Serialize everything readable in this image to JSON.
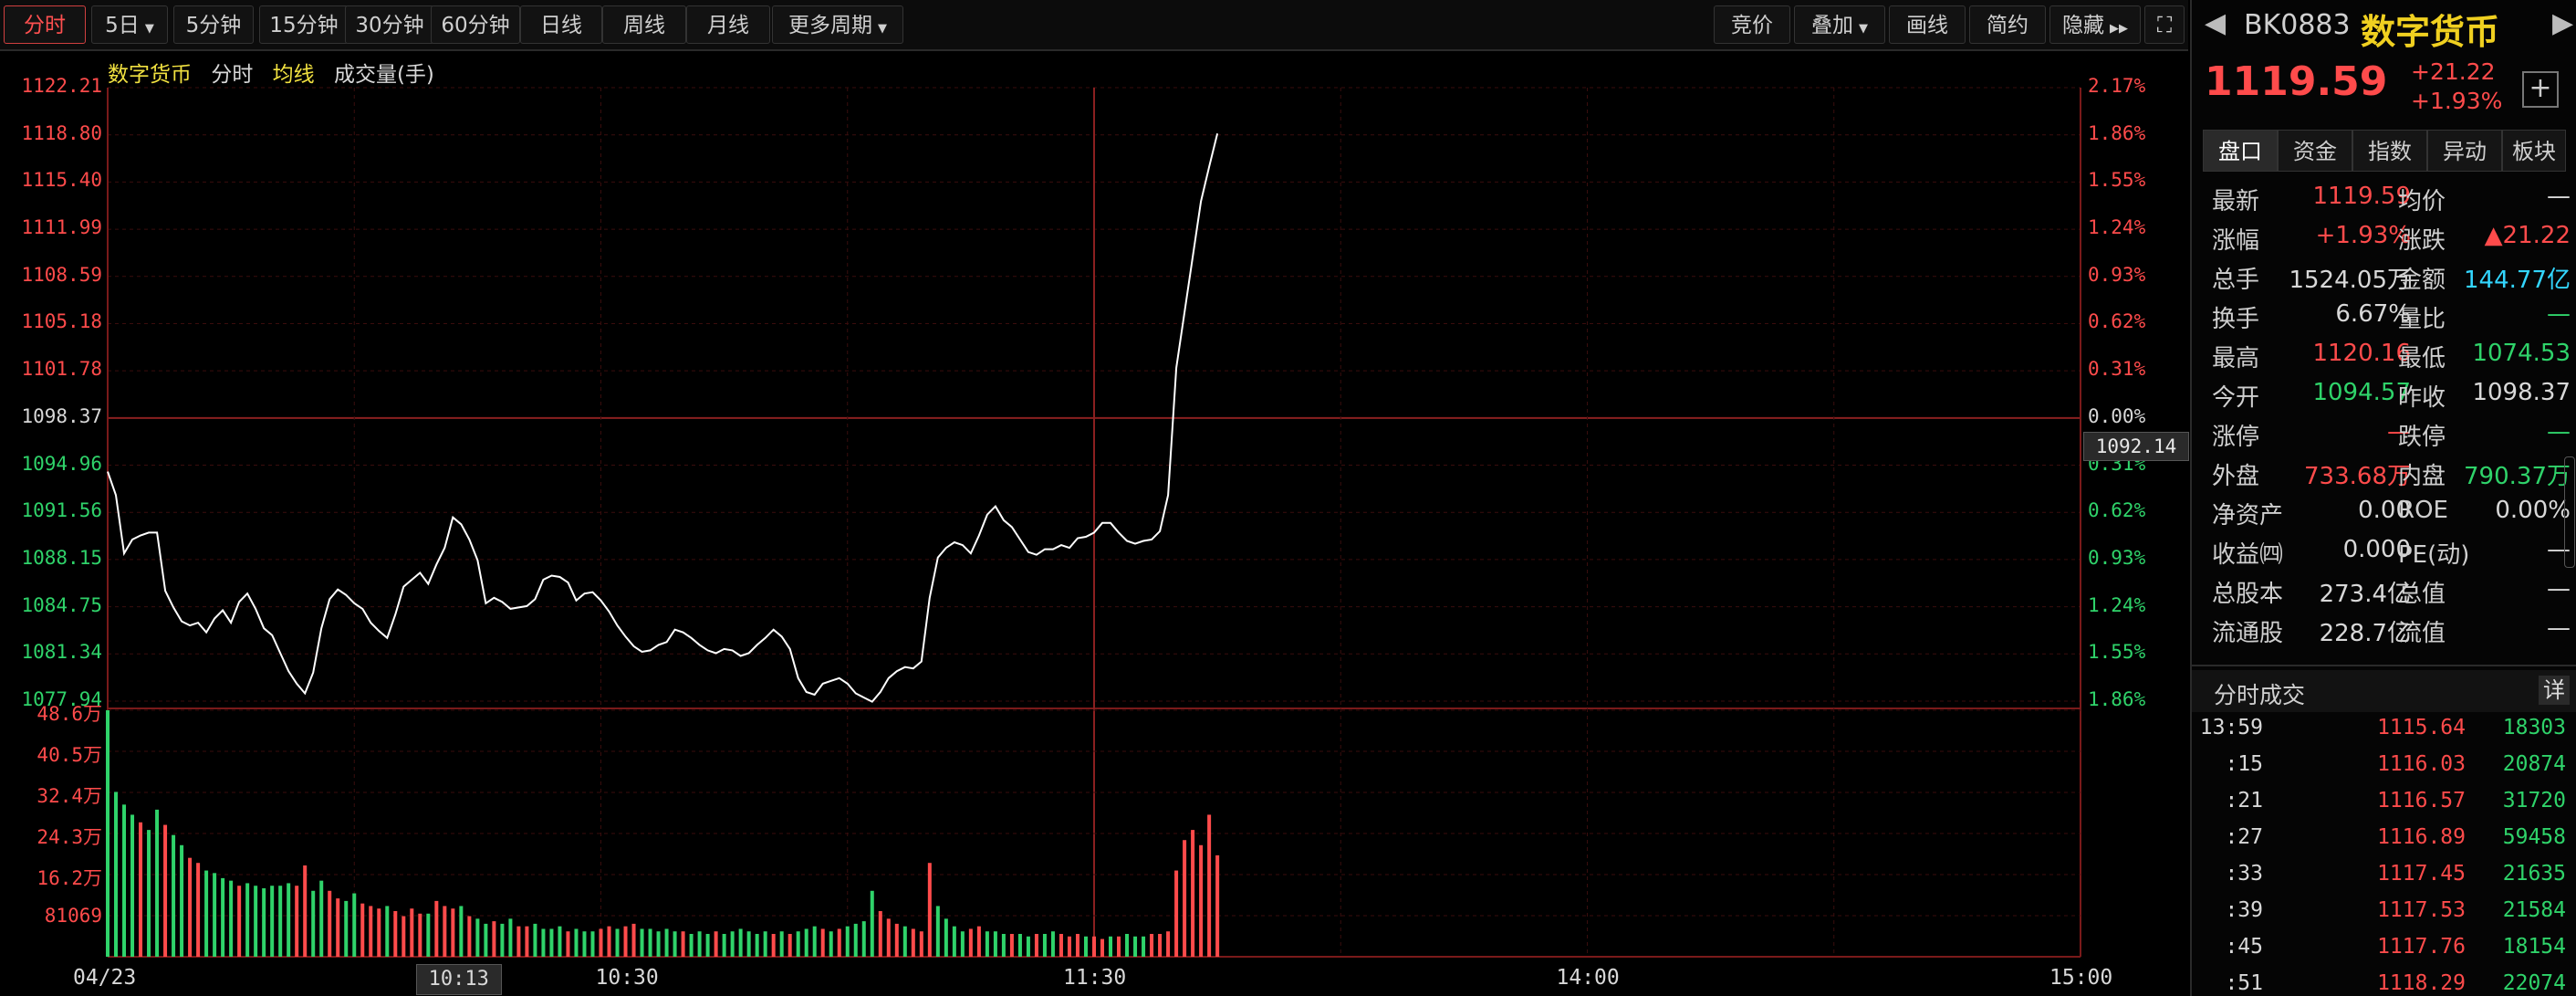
{
  "toolbar": {
    "periods": [
      "分时",
      "5日",
      "5分钟",
      "15分钟",
      "30分钟",
      "60分钟",
      "日线",
      "周线",
      "月线",
      "更多周期"
    ],
    "right": [
      "竞价",
      "叠加",
      "画线",
      "简约",
      "隐藏"
    ],
    "expand_icon": "expand-icon"
  },
  "legend": {
    "name": "数字货币",
    "time": "分时",
    "avg": "均线",
    "volume": "成交量(手)"
  },
  "price_axis": {
    "left": [
      "1122.21",
      "1118.80",
      "1115.40",
      "1111.99",
      "1108.59",
      "1105.18",
      "1101.78",
      "1098.37",
      "1094.96",
      "1091.56",
      "1088.15",
      "1084.75",
      "1081.34",
      "1077.94"
    ],
    "right": [
      "2.17%",
      "1.86%",
      "1.55%",
      "1.24%",
      "0.93%",
      "0.62%",
      "0.31%",
      "0.00%",
      "0.31%",
      "0.62%",
      "0.93%",
      "1.24%",
      "1.55%",
      "1.86%"
    ],
    "cursor_value": "1092.14"
  },
  "volume_axis": [
    "48.6万",
    "40.5万",
    "32.4万",
    "24.3万",
    "16.2万",
    "81069"
  ],
  "time_axis": {
    "labels": [
      "04/23",
      "10:30",
      "11:30",
      "14:00",
      "15:00"
    ],
    "cursor": "10:13"
  },
  "chart_data": {
    "type": "line",
    "title": "数字货币",
    "prev_close": 1098.37,
    "ylim": [
      1077.94,
      1122.21
    ],
    "price": [
      1094.5,
      1092.8,
      1088.6,
      1089.6,
      1089.9,
      1090.1,
      1090.1,
      1085.9,
      1084.7,
      1083.7,
      1083.4,
      1083.6,
      1082.9,
      1083.9,
      1084.5,
      1083.6,
      1085.1,
      1085.7,
      1084.6,
      1083.2,
      1082.7,
      1081.4,
      1080.1,
      1079.2,
      1078.5,
      1080.0,
      1083.2,
      1085.3,
      1086.0,
      1085.6,
      1085.0,
      1084.6,
      1083.6,
      1083.0,
      1082.5,
      1084.2,
      1086.2,
      1086.7,
      1087.2,
      1086.4,
      1087.8,
      1089.0,
      1091.2,
      1090.7,
      1089.6,
      1088.1,
      1085.0,
      1085.4,
      1085.1,
      1084.6,
      1084.7,
      1084.8,
      1085.3,
      1086.7,
      1087.0,
      1086.9,
      1086.5,
      1085.2,
      1085.7,
      1085.8,
      1085.2,
      1084.4,
      1083.4,
      1082.6,
      1081.9,
      1081.5,
      1081.6,
      1082.0,
      1082.2,
      1083.1,
      1082.9,
      1082.5,
      1082.0,
      1081.6,
      1081.4,
      1081.7,
      1081.6,
      1081.2,
      1081.4,
      1082.0,
      1082.5,
      1083.1,
      1082.6,
      1081.7,
      1079.6,
      1078.6,
      1078.4,
      1079.2,
      1079.4,
      1079.6,
      1079.2,
      1078.5,
      1078.2,
      1077.9,
      1078.6,
      1079.6,
      1080.1,
      1080.4,
      1080.3,
      1080.8,
      1085.4,
      1088.3,
      1089.0,
      1089.4,
      1089.2,
      1088.6,
      1089.9,
      1091.4,
      1092.0,
      1091.0,
      1090.5,
      1089.6,
      1088.7,
      1088.5,
      1088.9,
      1088.9,
      1089.2,
      1089.0,
      1089.7,
      1089.8,
      1090.1,
      1090.8,
      1090.8,
      1090.1,
      1089.5,
      1089.3,
      1089.5,
      1089.6,
      1090.2,
      1092.8,
      1102.0,
      1106.0,
      1110.0,
      1114.0,
      1116.5,
      1118.9
    ],
    "volume": [
      48.6,
      32.5,
      30.0,
      28.0,
      26.5,
      25.0,
      29.0,
      26.0,
      24.0,
      22.0,
      19.5,
      18.5,
      17.0,
      16.5,
      15.5,
      15.0,
      14.0,
      14.5,
      14.0,
      13.5,
      14.0,
      14.0,
      14.5,
      14.0,
      18.0,
      13.0,
      15.0,
      13.0,
      11.5,
      11.0,
      12.5,
      10.5,
      10.0,
      9.5,
      10.0,
      9.0,
      8.0,
      9.5,
      8.5,
      8.5,
      11.0,
      10.0,
      9.5,
      10.0,
      8.0,
      7.5,
      6.5,
      7.0,
      6.5,
      7.5,
      6.0,
      6.0,
      6.5,
      5.5,
      5.5,
      6.0,
      5.0,
      5.5,
      5.0,
      5.0,
      5.5,
      6.0,
      5.5,
      6.0,
      6.5,
      5.5,
      5.5,
      5.0,
      5.5,
      5.0,
      5.0,
      4.5,
      5.0,
      4.5,
      5.0,
      4.5,
      5.0,
      5.5,
      5.0,
      4.5,
      5.0,
      4.5,
      5.0,
      4.5,
      5.0,
      5.5,
      6.0,
      5.5,
      5.0,
      5.5,
      6.0,
      6.5,
      7.0,
      13.0,
      9.0,
      7.5,
      6.5,
      6.0,
      5.5,
      5.0,
      18.5,
      10.0,
      7.5,
      6.0,
      5.0,
      5.5,
      6.0,
      5.0,
      5.0,
      4.5,
      4.5,
      4.5,
      4.0,
      4.5,
      4.5,
      5.0,
      4.5,
      4.0,
      4.5,
      4.0,
      4.0,
      3.5,
      4.0,
      4.0,
      4.5,
      4.0,
      4.0,
      4.5,
      4.5,
      5.0,
      17.0,
      23.0,
      25.0,
      22.0,
      28.0,
      20.0
    ],
    "volume_up": [
      false,
      false,
      false,
      false,
      true,
      false,
      false,
      true,
      false,
      false,
      true,
      true,
      false,
      false,
      false,
      false,
      true,
      false,
      false,
      false,
      false,
      false,
      false,
      true,
      true,
      false,
      false,
      true,
      true,
      false,
      false,
      true,
      true,
      true,
      false,
      true,
      true,
      true,
      true,
      false,
      true,
      true,
      true,
      false,
      true,
      false,
      false,
      true,
      false,
      false,
      true,
      true,
      false,
      false,
      false,
      false,
      true,
      false,
      false,
      false,
      true,
      true,
      false,
      true,
      true,
      false,
      false,
      false,
      false,
      false,
      true,
      false,
      false,
      false,
      true,
      false,
      false,
      false,
      false,
      false,
      false,
      true,
      false,
      true,
      false,
      false,
      false,
      true,
      false,
      true,
      false,
      false,
      false,
      false,
      true,
      true,
      true,
      false,
      true,
      true,
      true,
      false,
      false,
      false,
      false,
      true,
      true,
      false,
      false,
      false,
      true,
      false,
      false,
      true,
      false,
      false,
      true,
      true,
      true,
      false,
      true,
      true,
      false,
      true,
      false,
      false,
      false,
      true,
      true,
      true,
      true,
      true,
      true,
      true,
      true,
      true
    ],
    "total_minutes": 240
  },
  "panel": {
    "code": "BK0883",
    "name": "数字货币",
    "price": "1119.59",
    "change": "+21.22",
    "change_pct": "+1.93%",
    "tabs": [
      "盘口",
      "资金",
      "指数",
      "异动",
      "板块"
    ],
    "quote": [
      {
        "l1": "最新",
        "v1": "1119.59",
        "c1": "red",
        "l2": "均价",
        "v2": "—",
        "c2": "white"
      },
      {
        "l1": "涨幅",
        "v1": "+1.93%",
        "c1": "red",
        "l2": "涨跌",
        "v2": "▲21.22",
        "c2": "red"
      },
      {
        "l1": "总手",
        "v1": "1524.05万",
        "c1": "white",
        "l2": "金额",
        "v2": "144.77亿",
        "c2": "cyan"
      },
      {
        "l1": "换手",
        "v1": "6.67%",
        "c1": "white",
        "l2": "量比",
        "v2": "—",
        "c2": "green"
      },
      {
        "l1": "最高",
        "v1": "1120.16",
        "c1": "red",
        "l2": "最低",
        "v2": "1074.53",
        "c2": "green"
      },
      {
        "l1": "今开",
        "v1": "1094.57",
        "c1": "green",
        "l2": "昨收",
        "v2": "1098.37",
        "c2": "white"
      },
      {
        "l1": "涨停",
        "v1": "—",
        "c1": "red",
        "l2": "跌停",
        "v2": "—",
        "c2": "green"
      },
      {
        "l1": "外盘",
        "v1": "733.68万",
        "c1": "red",
        "l2": "内盘",
        "v2": "790.37万",
        "c2": "green"
      },
      {
        "l1": "净资产",
        "v1": "0.00",
        "c1": "white",
        "l2": "ROE",
        "v2": "0.00%",
        "c2": "white"
      },
      {
        "l1": "收益㈣",
        "v1": "0.000",
        "c1": "white",
        "l2": "PE(动)",
        "v2": "—",
        "c2": "white"
      },
      {
        "l1": "总股本",
        "v1": "273.4亿",
        "c1": "white",
        "l2": "总值",
        "v2": "—",
        "c2": "white"
      },
      {
        "l1": "流通股",
        "v1": "228.7亿",
        "c1": "white",
        "l2": "流值",
        "v2": "—",
        "c2": "white"
      }
    ],
    "ticks_title": "分时成交",
    "ticks_detail": "详",
    "ticks": [
      {
        "t": "13:59",
        "p": "1115.64",
        "v": "18303"
      },
      {
        "t": ":15",
        "p": "1116.03",
        "v": "20874"
      },
      {
        "t": ":21",
        "p": "1116.57",
        "v": "31720"
      },
      {
        "t": ":27",
        "p": "1116.89",
        "v": "59458"
      },
      {
        "t": ":33",
        "p": "1117.45",
        "v": "21635"
      },
      {
        "t": ":39",
        "p": "1117.53",
        "v": "21584"
      },
      {
        "t": ":45",
        "p": "1117.76",
        "v": "18154"
      },
      {
        "t": ":51",
        "p": "1118.29",
        "v": "22074"
      }
    ]
  },
  "colors": {
    "up": "#ff4b4b",
    "down": "#2fd36a",
    "grid": "#3a0d0d",
    "price_line": "#ffffff"
  }
}
